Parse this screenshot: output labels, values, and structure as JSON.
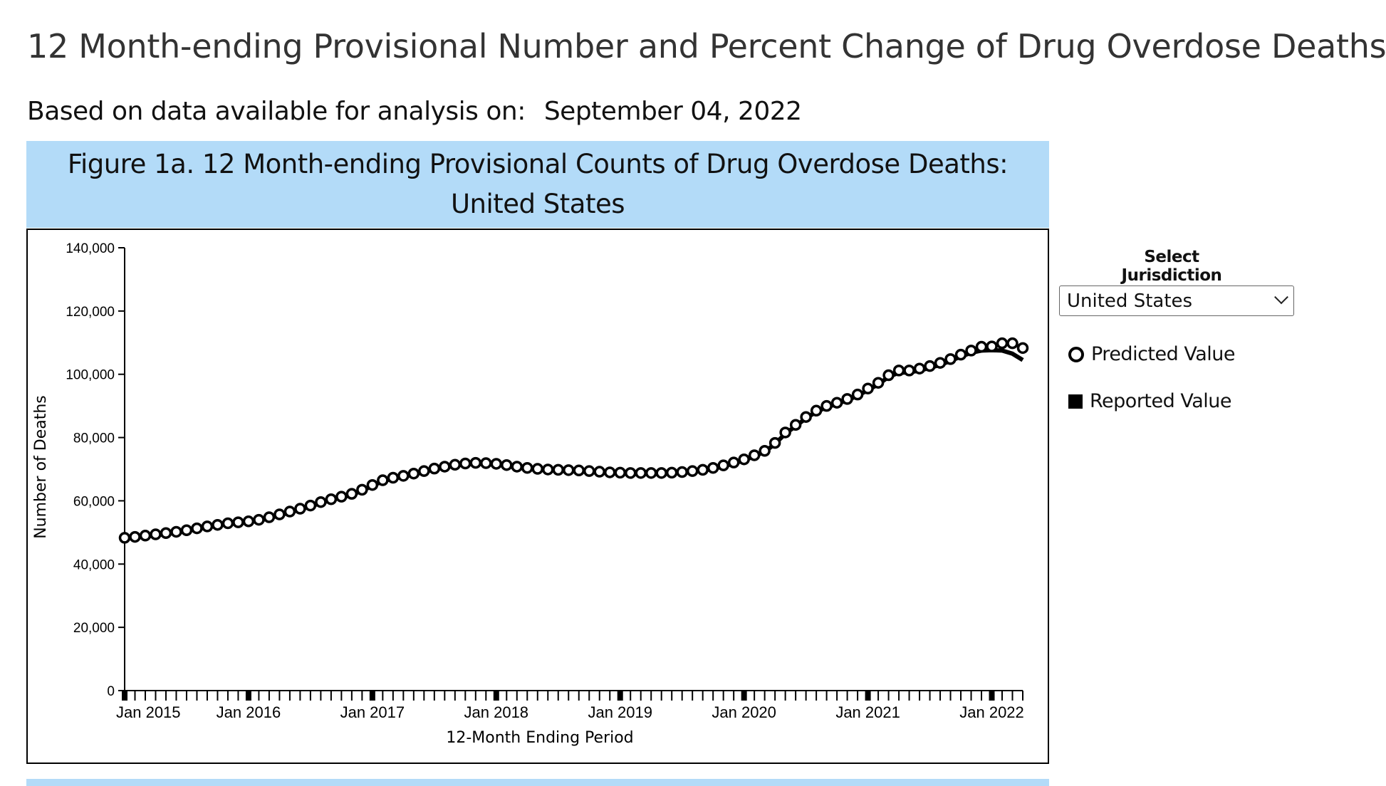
{
  "page": {
    "title": "12 Month-ending Provisional Number and Percent Change of Drug Overdose Deaths",
    "subtitle_label": "Based on data available for analysis on:",
    "subtitle_date": "September 04, 2022"
  },
  "figure": {
    "header": "Figure 1a. 12 Month-ending Provisional Counts of Drug Overdose Deaths: United States"
  },
  "controls": {
    "jurisdiction_label": "Select Jurisdiction",
    "jurisdiction_value": "United States"
  },
  "legend": {
    "predicted": "Predicted Value",
    "reported": "Reported Value"
  },
  "chart_data": {
    "type": "line",
    "title": "Figure 1a. 12 Month-ending Provisional Counts of Drug Overdose Deaths: United States",
    "xlabel": "12-Month Ending Period",
    "ylabel": "Number of Deaths",
    "ylim": [
      0,
      140000
    ],
    "yticks": [
      "0",
      "20,000",
      "40,000",
      "60,000",
      "80,000",
      "100,000",
      "120,000",
      "140,000"
    ],
    "ytick_values": [
      0,
      20000,
      40000,
      60000,
      80000,
      100000,
      120000,
      140000
    ],
    "x_start": "Jan 2015",
    "x_end": "Apr 2022",
    "xticks": [
      "Jan 2015",
      "Jan 2016",
      "Jan 2017",
      "Jan 2018",
      "Jan 2019",
      "Jan 2020",
      "Jan 2021",
      "Jan 2022"
    ],
    "xtick_month_index": [
      0,
      12,
      24,
      36,
      48,
      60,
      72,
      84
    ],
    "legend_position": "right",
    "series": [
      {
        "name": "Predicted Value",
        "marker": "open-circle",
        "values": [
          48300,
          48600,
          49000,
          49400,
          49800,
          50200,
          50700,
          51300,
          51900,
          52400,
          52900,
          53200,
          53500,
          54000,
          54800,
          55700,
          56600,
          57500,
          58500,
          59600,
          60500,
          61300,
          62200,
          63500,
          65000,
          66500,
          67300,
          67900,
          68600,
          69400,
          70200,
          70800,
          71400,
          71800,
          72000,
          71900,
          71700,
          71300,
          70800,
          70400,
          70100,
          69900,
          69800,
          69700,
          69600,
          69400,
          69200,
          69000,
          68900,
          68800,
          68800,
          68800,
          68800,
          68900,
          69100,
          69400,
          69800,
          70400,
          71200,
          72100,
          73100,
          74400,
          75800,
          78300,
          81600,
          84000,
          86500,
          88500,
          90000,
          91000,
          92200,
          93600,
          95500,
          97300,
          99700,
          101200,
          101200,
          101800,
          102600,
          103600,
          104800,
          106200,
          107500,
          108700,
          108800,
          109800,
          109800,
          108300
        ]
      },
      {
        "name": "Reported Value",
        "marker": "line",
        "values": [
          48000,
          48300,
          48700,
          49100,
          49500,
          49900,
          50400,
          51000,
          51600,
          52100,
          52600,
          52900,
          53200,
          53700,
          54500,
          55400,
          56300,
          57200,
          58200,
          59300,
          60200,
          61000,
          61900,
          63200,
          64700,
          66200,
          67000,
          67600,
          68300,
          69100,
          69900,
          70500,
          71100,
          71500,
          71700,
          71600,
          71400,
          71000,
          70500,
          70100,
          69800,
          69600,
          69500,
          69400,
          69300,
          69100,
          68900,
          68700,
          68600,
          68500,
          68500,
          68500,
          68500,
          68600,
          68800,
          69100,
          69500,
          70100,
          70900,
          71800,
          72800,
          74100,
          75500,
          78000,
          81200,
          83600,
          86100,
          88100,
          89600,
          90600,
          91800,
          93200,
          95000,
          96800,
          99200,
          100500,
          100600,
          101200,
          102000,
          103000,
          104200,
          105600,
          106800,
          107500,
          107600,
          107500,
          106500,
          104500
        ]
      }
    ]
  }
}
